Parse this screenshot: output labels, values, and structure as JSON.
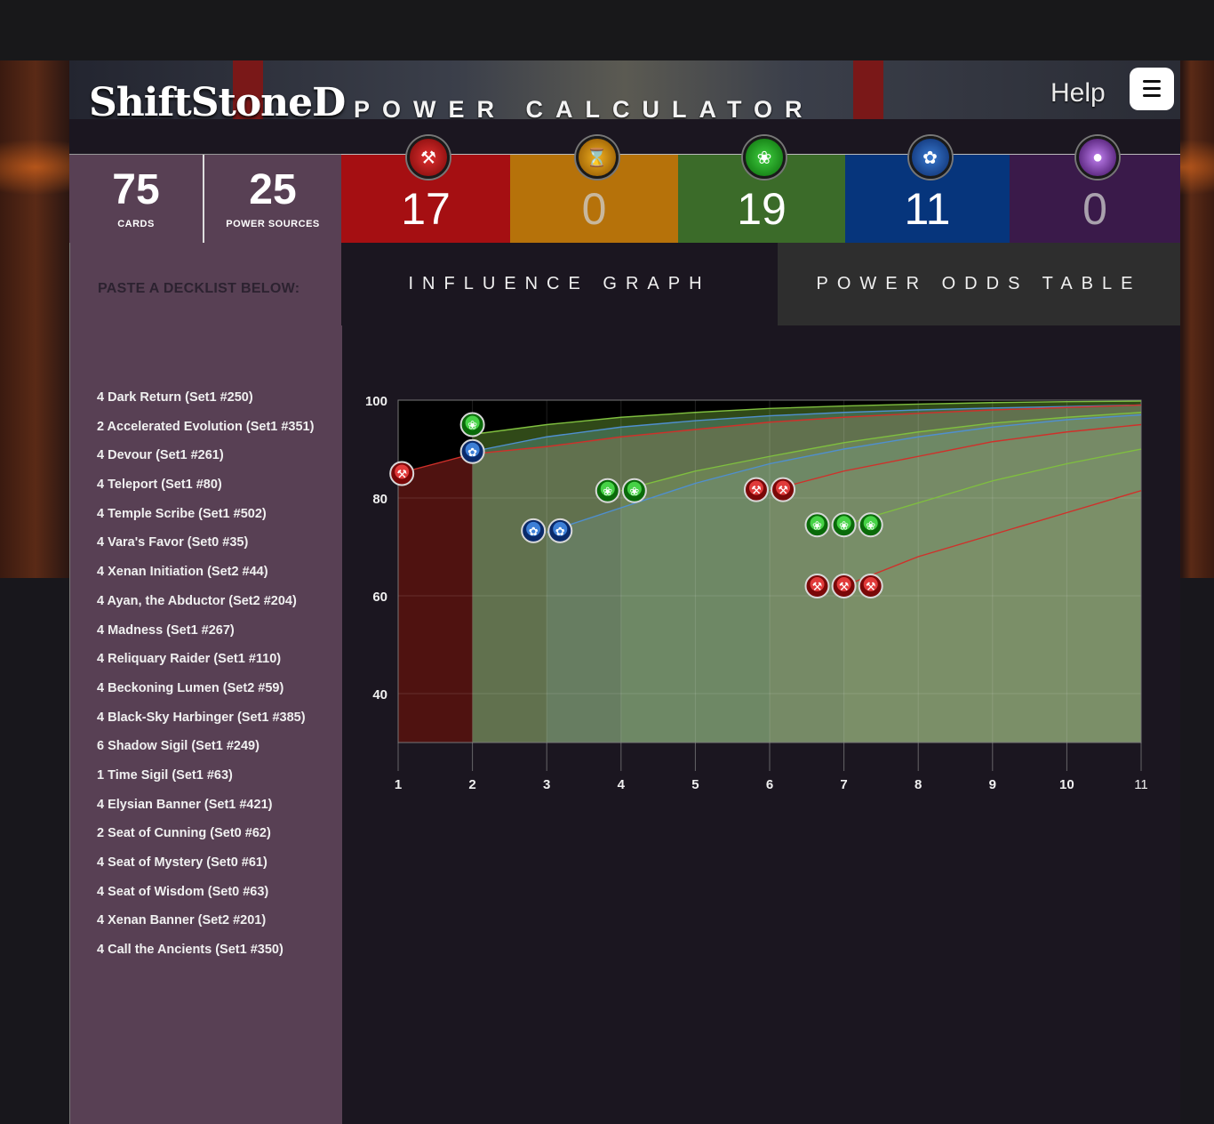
{
  "header": {
    "logo": "ShiftStoneD",
    "title": "POWER CALCULATOR",
    "help_label": "Help"
  },
  "stats": {
    "cards": {
      "value": "75",
      "label": "CARDS"
    },
    "power_sources": {
      "value": "25",
      "label": "POWER SOURCES"
    }
  },
  "powers": [
    {
      "icon": "red-hammer-icon",
      "value": "17",
      "color": "#a50f12"
    },
    {
      "icon": "yellow-hourglass-icon",
      "value": "0",
      "color": "#b6720a"
    },
    {
      "icon": "green-leaf-icon",
      "value": "19",
      "color": "#3b6b29"
    },
    {
      "icon": "blue-paw-icon",
      "value": "11",
      "color": "#06357c"
    },
    {
      "icon": "purple-orb-icon",
      "value": "0",
      "color": "#3a1a4a"
    }
  ],
  "sidebar": {
    "paste_label": "PASTE A DECKLIST BELOW:",
    "decklist": [
      "4 Dark Return (Set1 #250)",
      "2 Accelerated Evolution (Set1 #351)",
      "4 Devour (Set1 #261)",
      "4 Teleport (Set1 #80)",
      "4 Temple Scribe (Set1 #502)",
      "4 Vara's Favor (Set0 #35)",
      "4 Xenan Initiation (Set2 #44)",
      "4 Ayan, the Abductor (Set2 #204)",
      "4 Madness (Set1 #267)",
      "4 Reliquary Raider (Set1 #110)",
      "4 Beckoning Lumen (Set2 #59)",
      "4 Black-Sky Harbinger (Set1 #385)",
      "6 Shadow Sigil (Set1 #249)",
      "1 Time Sigil (Set1 #63)",
      "4 Elysian Banner (Set1 #421)",
      "2 Seat of Cunning (Set0 #62)",
      "4 Seat of Mystery (Set0 #61)",
      "4 Seat of Wisdom (Set0 #63)",
      "4 Xenan Banner (Set2 #201)",
      "4 Call the Ancients (Set1 #350)"
    ]
  },
  "tabs": {
    "graph": "INFLUENCE GRAPH",
    "odds": "POWER ODDS TABLE"
  },
  "chart_data": {
    "type": "area",
    "title": "",
    "xlabel": "",
    "ylabel": "",
    "x": [
      1,
      2,
      3,
      4,
      5,
      6,
      7,
      8,
      9,
      10,
      11
    ],
    "x_ticks": [
      "1",
      "2",
      "3",
      "4",
      "5",
      "6",
      "7",
      "8",
      "9",
      "10",
      "11"
    ],
    "y_ticks": [
      "100",
      "80",
      "60",
      "40"
    ],
    "ylim": [
      30,
      100
    ],
    "xlim": [
      1,
      11
    ],
    "series": [
      {
        "key": "green1",
        "color": "#7fbf3f",
        "values": [
          null,
          93,
          95,
          96.5,
          97.5,
          98.3,
          98.8,
          99.2,
          99.5,
          99.7,
          99.8
        ]
      },
      {
        "key": "blue1",
        "color": "#4f8fcf",
        "values": [
          null,
          89.5,
          92.5,
          94.5,
          95.8,
          96.8,
          97.5,
          98,
          98.4,
          98.7,
          99
        ]
      },
      {
        "key": "red1",
        "color": "#d0302a",
        "values": [
          85,
          89,
          90.5,
          92.5,
          94,
          95.5,
          96.5,
          97.3,
          98,
          98.5,
          99
        ]
      },
      {
        "key": "blue2",
        "color": "#4f8fcf",
        "values": [
          null,
          null,
          73,
          78,
          83,
          87,
          90,
          92.5,
          94.5,
          96,
          97
        ]
      },
      {
        "key": "green2",
        "color": "#7fbf3f",
        "values": [
          null,
          null,
          null,
          81.5,
          85.5,
          88.5,
          91.3,
          93.5,
          95.3,
          96.5,
          97.5
        ]
      },
      {
        "key": "red2",
        "color": "#d0302a",
        "values": [
          null,
          null,
          null,
          null,
          null,
          81.5,
          85.5,
          88.5,
          91.5,
          93.5,
          95
        ]
      },
      {
        "key": "green3",
        "color": "#7fbf3f",
        "values": [
          null,
          null,
          null,
          null,
          null,
          null,
          74.5,
          79,
          83.5,
          87,
          90
        ]
      },
      {
        "key": "red3",
        "color": "#d0302a",
        "values": [
          null,
          null,
          null,
          null,
          null,
          null,
          62,
          68,
          72.5,
          77,
          81.5
        ]
      }
    ],
    "markers": [
      {
        "x": 1.05,
        "y": 85,
        "icon": "red-hammer-icon"
      },
      {
        "x": 2,
        "y": 95,
        "icon": "green-leaf-icon"
      },
      {
        "x": 2,
        "y": 89.5,
        "icon": "blue-paw-icon"
      },
      {
        "x": 2.82,
        "y": 73.3,
        "icon": "blue-paw-icon"
      },
      {
        "x": 3.18,
        "y": 73.3,
        "icon": "blue-paw-icon"
      },
      {
        "x": 3.82,
        "y": 81.5,
        "icon": "green-leaf-icon"
      },
      {
        "x": 4.18,
        "y": 81.5,
        "icon": "green-leaf-icon"
      },
      {
        "x": 5.82,
        "y": 81.7,
        "icon": "red-hammer-icon"
      },
      {
        "x": 6.18,
        "y": 81.7,
        "icon": "red-hammer-icon"
      },
      {
        "x": 6.64,
        "y": 74.5,
        "icon": "green-leaf-icon"
      },
      {
        "x": 7,
        "y": 74.5,
        "icon": "green-leaf-icon"
      },
      {
        "x": 7.36,
        "y": 74.5,
        "icon": "green-leaf-icon"
      },
      {
        "x": 6.64,
        "y": 62,
        "icon": "red-hammer-icon"
      },
      {
        "x": 7,
        "y": 62,
        "icon": "red-hammer-icon"
      },
      {
        "x": 7.36,
        "y": 62,
        "icon": "red-hammer-icon"
      }
    ]
  }
}
